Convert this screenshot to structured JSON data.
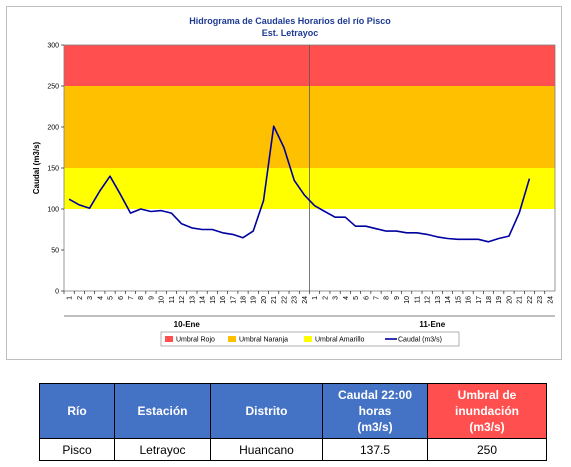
{
  "chart_data": {
    "type": "line",
    "title": "Hidrograma de Caudales Horarios del río Pisco",
    "subtitle": "Est. Letrayoc",
    "ylabel": "Caudal  (m3/s)",
    "ylim": [
      0,
      300
    ],
    "yticks": [
      0,
      50,
      100,
      150,
      200,
      250,
      300
    ],
    "xticks": [
      "1",
      "2",
      "3",
      "4",
      "5",
      "6",
      "7",
      "8",
      "9",
      "10",
      "11",
      "12",
      "13",
      "14",
      "15",
      "16",
      "17",
      "18",
      "19",
      "20",
      "21",
      "22",
      "23",
      "24",
      "1",
      "2",
      "3",
      "4",
      "5",
      "6",
      "7",
      "8",
      "9",
      "10",
      "11",
      "12",
      "13",
      "14",
      "15",
      "16",
      "17",
      "18",
      "19",
      "20",
      "21",
      "22",
      "23",
      "24"
    ],
    "day_groups": [
      {
        "label": "10-Ene",
        "count": 24
      },
      {
        "label": "11-Ene",
        "count": 24
      }
    ],
    "bands": [
      {
        "name": "Umbral Rojo",
        "from": 250,
        "to": 300,
        "color": "#ff4f4f"
      },
      {
        "name": "Umbral Naranja",
        "from": 150,
        "to": 250,
        "color": "#ffc000"
      },
      {
        "name": "Umbral Amarillo",
        "from": 100,
        "to": 150,
        "color": "#ffff00"
      }
    ],
    "series": [
      {
        "name": "Caudal (m3/s)",
        "color": "#0000a0",
        "values": [
          112,
          105,
          101,
          122,
          140,
          118,
          95,
          100,
          97,
          98,
          95,
          82,
          77,
          75,
          75,
          71,
          69,
          65,
          73,
          110,
          201,
          175,
          135,
          117,
          104,
          97,
          90,
          90,
          79,
          79,
          76,
          73,
          73,
          71,
          71,
          69,
          66,
          64,
          63,
          63,
          63,
          60,
          64,
          67,
          95,
          137
        ]
      }
    ],
    "legend_position": "bottom"
  },
  "table": {
    "headers": [
      "Río",
      "Estación",
      "Distrito",
      "Caudal 22:00 horas (m3/s)",
      "Umbral de inundación (m3/s)"
    ],
    "header_lines": [
      [
        "Río"
      ],
      [
        "Estación"
      ],
      [
        "Distrito"
      ],
      [
        "Caudal 22:00",
        "horas",
        "(m3/s)"
      ],
      [
        "Umbral de",
        "inundación",
        "(m3/s)"
      ]
    ],
    "row": [
      "Pisco",
      "Letrayoc",
      "Huancano",
      "137.5",
      "250"
    ],
    "header_color": "#4472c4",
    "alert_color": "#ff4f4f"
  }
}
